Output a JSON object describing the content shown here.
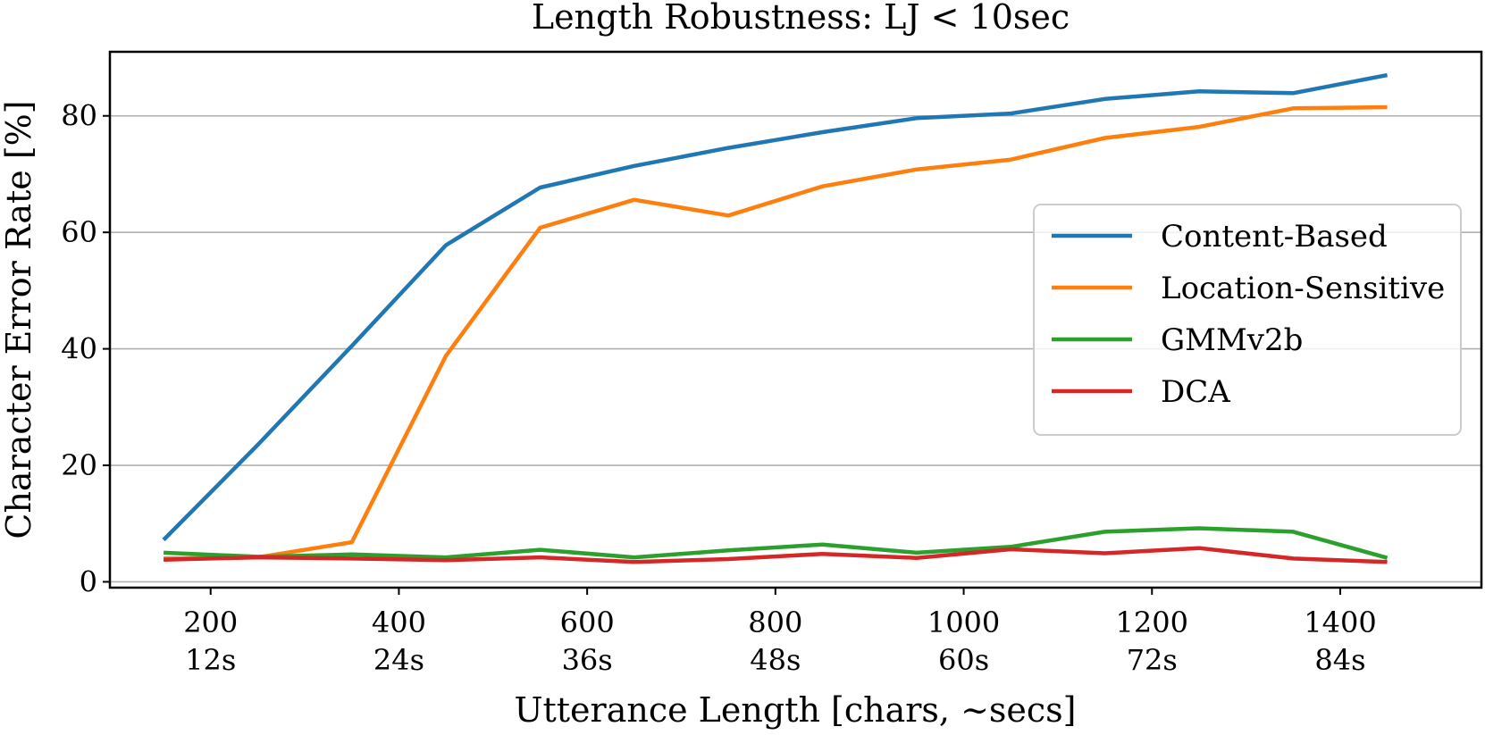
{
  "chart_data": {
    "type": "line",
    "title": "Length Robustness: LJ < 10sec",
    "xlabel": "Utterance Length [chars, ~secs]",
    "ylabel": "Character Error Rate [%]",
    "xlim": [
      93,
      1550
    ],
    "ylim": [
      -1,
      91
    ],
    "grid": "horizontal",
    "legend_position": "center-right",
    "x_ticks": [
      {
        "value": 200,
        "label": "200",
        "sublabel": "12s"
      },
      {
        "value": 400,
        "label": "400",
        "sublabel": "24s"
      },
      {
        "value": 600,
        "label": "600",
        "sublabel": "36s"
      },
      {
        "value": 800,
        "label": "800",
        "sublabel": "48s"
      },
      {
        "value": 1000,
        "label": "1000",
        "sublabel": "60s"
      },
      {
        "value": 1200,
        "label": "1200",
        "sublabel": "72s"
      },
      {
        "value": 1400,
        "label": "1400",
        "sublabel": "84s"
      }
    ],
    "y_ticks": [
      {
        "value": 0,
        "label": "0"
      },
      {
        "value": 20,
        "label": "20"
      },
      {
        "value": 40,
        "label": "40"
      },
      {
        "value": 60,
        "label": "60"
      },
      {
        "value": 80,
        "label": "80"
      }
    ],
    "x": [
      150,
      250,
      350,
      450,
      550,
      650,
      750,
      850,
      950,
      1050,
      1150,
      1250,
      1350,
      1450
    ],
    "series": [
      {
        "name": "Content-Based",
        "color": "#1f77b4",
        "values": [
          7.2,
          23.5,
          40.5,
          57.8,
          67.7,
          71.4,
          74.5,
          77.2,
          79.6,
          80.4,
          82.9,
          84.2,
          83.9,
          87.0
        ]
      },
      {
        "name": "Location-Sensitive",
        "color": "#ff7f0e",
        "values": [
          4.0,
          4.2,
          6.8,
          38.8,
          60.8,
          65.6,
          62.9,
          67.9,
          70.8,
          72.5,
          76.2,
          78.1,
          81.3,
          81.5
        ]
      },
      {
        "name": "GMMv2b",
        "color": "#2ca02c",
        "values": [
          5.0,
          4.3,
          4.7,
          4.2,
          5.5,
          4.2,
          5.4,
          6.4,
          5.0,
          6.0,
          8.6,
          9.2,
          8.6,
          4.1
        ]
      },
      {
        "name": "DCA",
        "color": "#d62728",
        "values": [
          3.8,
          4.2,
          4.0,
          3.7,
          4.2,
          3.4,
          3.9,
          4.8,
          4.1,
          5.6,
          4.9,
          5.8,
          4.0,
          3.4
        ]
      }
    ]
  }
}
